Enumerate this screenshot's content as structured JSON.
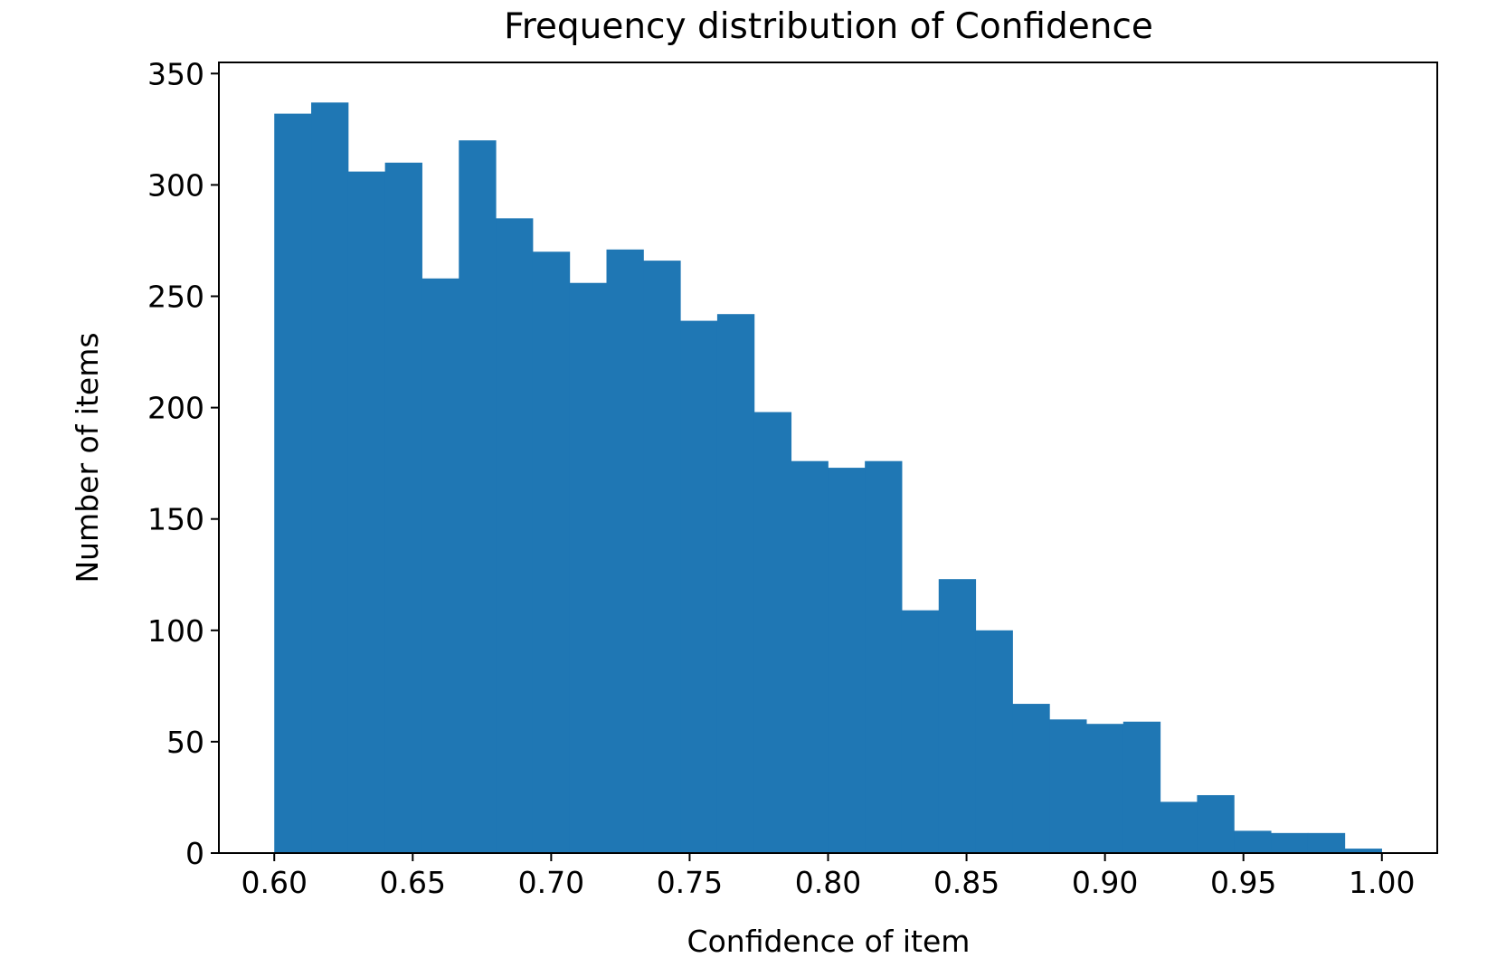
{
  "chart_data": {
    "type": "bar",
    "title": "Frequency distribution of Confidence",
    "xlabel": "Confidence of item",
    "ylabel": "Number of items",
    "x_range": [
      0.58,
      1.02
    ],
    "ylim": [
      0,
      355
    ],
    "x_ticks": [
      "0.60",
      "0.65",
      "0.70",
      "0.75",
      "0.80",
      "0.85",
      "0.90",
      "0.95",
      "1.00"
    ],
    "y_ticks": [
      "0",
      "50",
      "100",
      "150",
      "200",
      "250",
      "300",
      "350"
    ],
    "bin_start": 0.6,
    "bin_width": 0.01333,
    "values": [
      332,
      337,
      306,
      310,
      258,
      320,
      285,
      270,
      256,
      271,
      266,
      239,
      242,
      198,
      176,
      173,
      176,
      109,
      123,
      100,
      67,
      60,
      58,
      59,
      23,
      26,
      10,
      9,
      9,
      2
    ],
    "grid": false,
    "legend": "none",
    "bar_color": "#1f77b4"
  }
}
